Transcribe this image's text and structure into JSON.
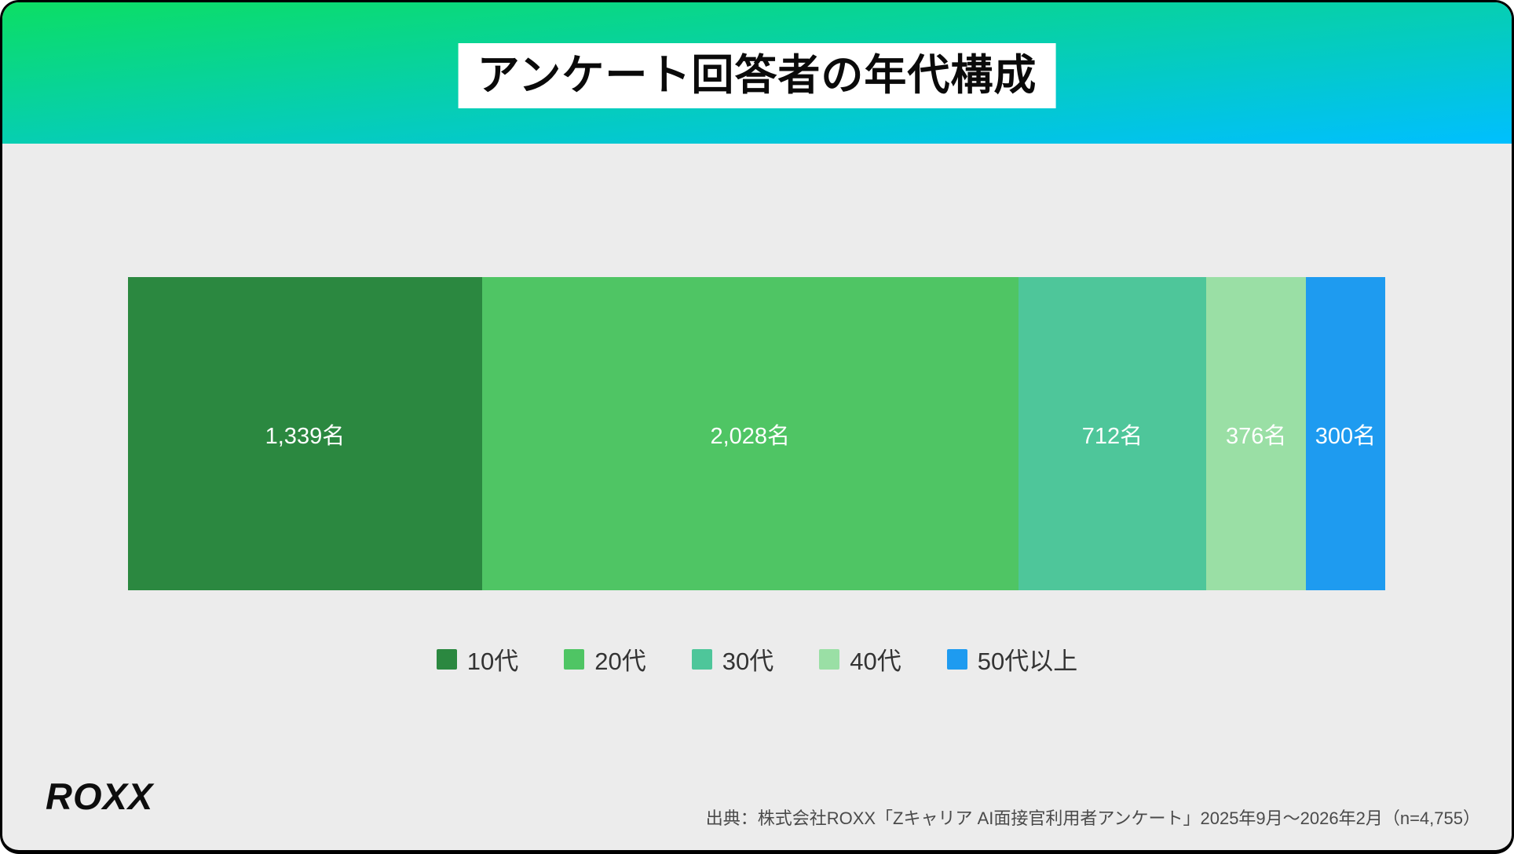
{
  "header": {
    "title": "アンケート回答者の年代構成",
    "gradient_from": "#0CDE64",
    "gradient_to": "#00BFFF"
  },
  "chart_data": {
    "type": "bar",
    "orientation": "horizontal-stacked",
    "title": "アンケート回答者の年代構成",
    "categories": [
      "10代",
      "20代",
      "30代",
      "40代",
      "50代以上"
    ],
    "values": [
      1339,
      2028,
      712,
      376,
      300
    ],
    "labels": [
      "1,339名",
      "2,028名",
      "712名",
      "376名",
      "300名"
    ],
    "colors": [
      "#2B8840",
      "#4FC564",
      "#4EC69A",
      "#9ADFA5",
      "#1E9BF0"
    ],
    "total": 4755,
    "legend_position": "bottom",
    "grid": false
  },
  "footer": {
    "logo": "ROXX",
    "source": "出典：株式会社ROXX「Zキャリア AI面接官利用者アンケート」2025年9月〜2026年2月（n=4,755）"
  },
  "colors": {
    "background": "#ECECEC",
    "border": "#000000",
    "bar_label_text": "#FFFFFF",
    "legend_text": "#333333",
    "source_text": "#4A4A4A"
  }
}
